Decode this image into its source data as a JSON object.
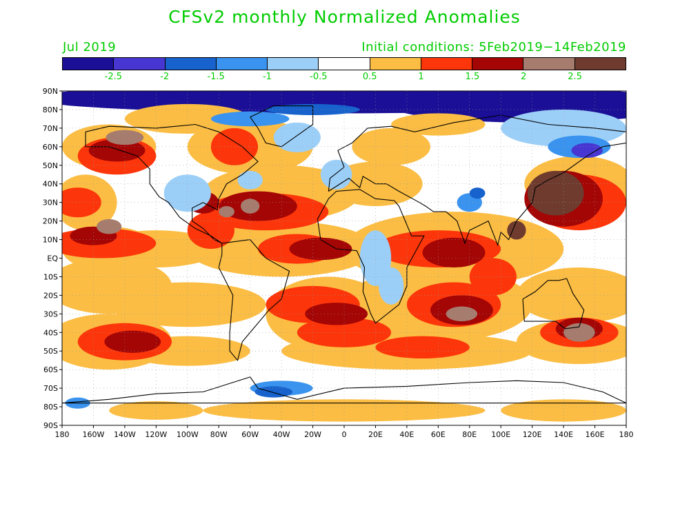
{
  "title": "CFSv2 monthly Normalized Anomalies",
  "valid_month": "Jul 2019",
  "initial_conditions": "Initial conditions: 5Feb2019−14Feb2019",
  "text_color": "#00cc00",
  "colorbar": {
    "colors": [
      "#1a0f96",
      "#4736d2",
      "#1762cc",
      "#3a93ee",
      "#9ccff8",
      "#ffffff",
      "#fbbd43",
      "#fc360a",
      "#a40505",
      "#a67c6e",
      "#6e3b2e"
    ],
    "labels": [
      "-2.5",
      "-2",
      "-1.5",
      "-1",
      "-0.5",
      "0.5",
      "1",
      "1.5",
      "2",
      "2.5"
    ]
  },
  "map": {
    "lat_labels": [
      "90N",
      "80N",
      "70N",
      "60N",
      "50N",
      "40N",
      "30N",
      "20N",
      "10N",
      "EQ",
      "10S",
      "20S",
      "30S",
      "40S",
      "50S",
      "60S",
      "70S",
      "80S",
      "90S"
    ],
    "lon_labels": [
      "180",
      "160W",
      "140W",
      "120W",
      "100W",
      "80W",
      "60W",
      "40W",
      "20W",
      "0",
      "20E",
      "40E",
      "60E",
      "80E",
      "100E",
      "120E",
      "140E",
      "160E",
      "180"
    ],
    "lon_range": [
      -180,
      180
    ],
    "lat_range": [
      -90,
      90
    ],
    "grid": "dotted"
  }
}
